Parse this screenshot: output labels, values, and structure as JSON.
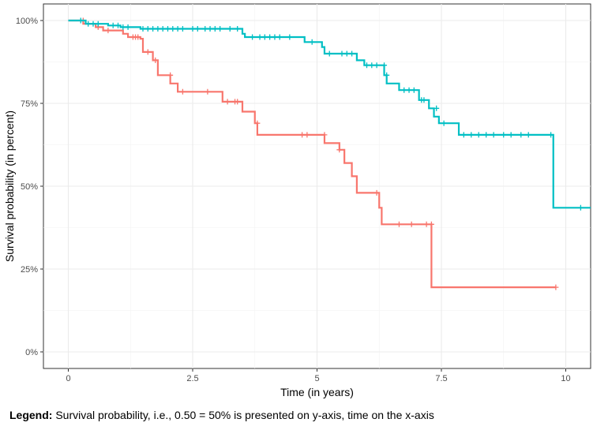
{
  "chart_data": {
    "type": "line",
    "xlabel": "Time (in years)",
    "ylabel": "Survival probability (in percent)",
    "xlim": [
      -0.5,
      10.5
    ],
    "ylim": [
      -0.05,
      1.05
    ],
    "x_ticks": [
      0,
      2.5,
      5,
      7.5,
      10
    ],
    "x_tick_labels": [
      "0",
      "2.5",
      "5",
      "7.5",
      "10"
    ],
    "y_ticks": [
      0,
      0.25,
      0.5,
      0.75,
      1.0
    ],
    "y_tick_labels": [
      "0%",
      "25%",
      "50%",
      "75%",
      "100%"
    ],
    "grid": true,
    "series": [
      {
        "color": "#F8766D",
        "steps": [
          [
            0,
            1.0
          ],
          [
            0.3,
            0.99
          ],
          [
            0.55,
            0.98
          ],
          [
            0.7,
            0.97
          ],
          [
            1.1,
            0.96
          ],
          [
            1.2,
            0.95
          ],
          [
            1.45,
            0.945
          ],
          [
            1.5,
            0.905
          ],
          [
            1.7,
            0.88
          ],
          [
            1.8,
            0.835
          ],
          [
            2.05,
            0.81
          ],
          [
            2.2,
            0.785
          ],
          [
            3.1,
            0.755
          ],
          [
            3.5,
            0.725
          ],
          [
            3.75,
            0.69
          ],
          [
            3.8,
            0.655
          ],
          [
            5.15,
            0.63
          ],
          [
            5.45,
            0.61
          ],
          [
            5.55,
            0.57
          ],
          [
            5.7,
            0.53
          ],
          [
            5.8,
            0.48
          ],
          [
            6.25,
            0.435
          ],
          [
            6.3,
            0.385
          ],
          [
            7.3,
            0.195
          ],
          [
            9.8,
            0.195
          ]
        ],
        "censor": [
          [
            0.3,
            1.0
          ],
          [
            0.6,
            0.98
          ],
          [
            0.8,
            0.97
          ],
          [
            1.3,
            0.95
          ],
          [
            1.35,
            0.95
          ],
          [
            1.4,
            0.95
          ],
          [
            1.6,
            0.905
          ],
          [
            1.75,
            0.88
          ],
          [
            2.05,
            0.835
          ],
          [
            2.3,
            0.785
          ],
          [
            2.8,
            0.785
          ],
          [
            3.2,
            0.755
          ],
          [
            3.35,
            0.755
          ],
          [
            3.4,
            0.755
          ],
          [
            3.8,
            0.69
          ],
          [
            4.7,
            0.655
          ],
          [
            4.8,
            0.655
          ],
          [
            5.15,
            0.655
          ],
          [
            5.45,
            0.61
          ],
          [
            6.2,
            0.48
          ],
          [
            6.65,
            0.385
          ],
          [
            6.9,
            0.385
          ],
          [
            7.2,
            0.385
          ],
          [
            7.3,
            0.385
          ],
          [
            9.8,
            0.195
          ]
        ]
      },
      {
        "color": "#00BFC4",
        "steps": [
          [
            0,
            1.0
          ],
          [
            0.35,
            0.99
          ],
          [
            0.8,
            0.985
          ],
          [
            1.05,
            0.98
          ],
          [
            1.45,
            0.975
          ],
          [
            3.5,
            0.96
          ],
          [
            3.55,
            0.95
          ],
          [
            4.75,
            0.935
          ],
          [
            5.1,
            0.92
          ],
          [
            5.15,
            0.9
          ],
          [
            5.3,
            0.9
          ],
          [
            5.8,
            0.88
          ],
          [
            5.95,
            0.865
          ],
          [
            6.35,
            0.835
          ],
          [
            6.4,
            0.81
          ],
          [
            6.65,
            0.79
          ],
          [
            7.05,
            0.76
          ],
          [
            7.25,
            0.735
          ],
          [
            7.35,
            0.71
          ],
          [
            7.45,
            0.69
          ],
          [
            7.85,
            0.655
          ],
          [
            9.75,
            0.435
          ],
          [
            10.5,
            0.435
          ]
        ],
        "censor": [
          [
            0.25,
            1.0
          ],
          [
            0.4,
            0.99
          ],
          [
            0.5,
            0.99
          ],
          [
            0.6,
            0.99
          ],
          [
            0.9,
            0.985
          ],
          [
            1.0,
            0.985
          ],
          [
            1.1,
            0.98
          ],
          [
            1.2,
            0.98
          ],
          [
            1.5,
            0.975
          ],
          [
            1.6,
            0.975
          ],
          [
            1.7,
            0.975
          ],
          [
            1.8,
            0.975
          ],
          [
            1.9,
            0.975
          ],
          [
            2.0,
            0.975
          ],
          [
            2.1,
            0.975
          ],
          [
            2.2,
            0.975
          ],
          [
            2.3,
            0.975
          ],
          [
            2.5,
            0.975
          ],
          [
            2.6,
            0.975
          ],
          [
            2.75,
            0.975
          ],
          [
            2.85,
            0.975
          ],
          [
            2.95,
            0.975
          ],
          [
            3.05,
            0.975
          ],
          [
            3.25,
            0.975
          ],
          [
            3.4,
            0.975
          ],
          [
            3.7,
            0.95
          ],
          [
            3.85,
            0.95
          ],
          [
            3.95,
            0.95
          ],
          [
            4.05,
            0.95
          ],
          [
            4.15,
            0.95
          ],
          [
            4.25,
            0.95
          ],
          [
            4.45,
            0.95
          ],
          [
            4.9,
            0.935
          ],
          [
            5.25,
            0.9
          ],
          [
            5.5,
            0.9
          ],
          [
            5.6,
            0.9
          ],
          [
            5.7,
            0.9
          ],
          [
            6.0,
            0.865
          ],
          [
            6.1,
            0.865
          ],
          [
            6.2,
            0.865
          ],
          [
            6.35,
            0.865
          ],
          [
            6.4,
            0.835
          ],
          [
            6.75,
            0.79
          ],
          [
            6.85,
            0.79
          ],
          [
            6.95,
            0.79
          ],
          [
            7.1,
            0.76
          ],
          [
            7.15,
            0.76
          ],
          [
            7.4,
            0.735
          ],
          [
            7.55,
            0.69
          ],
          [
            7.95,
            0.655
          ],
          [
            8.1,
            0.655
          ],
          [
            8.25,
            0.655
          ],
          [
            8.4,
            0.655
          ],
          [
            8.55,
            0.655
          ],
          [
            8.75,
            0.655
          ],
          [
            8.9,
            0.655
          ],
          [
            9.1,
            0.655
          ],
          [
            9.25,
            0.655
          ],
          [
            9.7,
            0.655
          ],
          [
            10.3,
            0.435
          ]
        ]
      }
    ]
  },
  "caption": {
    "label": "Legend:",
    "text": " Survival probability, i.e., 0.50 = 50% is presented on y-axis, time on the x-axis"
  }
}
